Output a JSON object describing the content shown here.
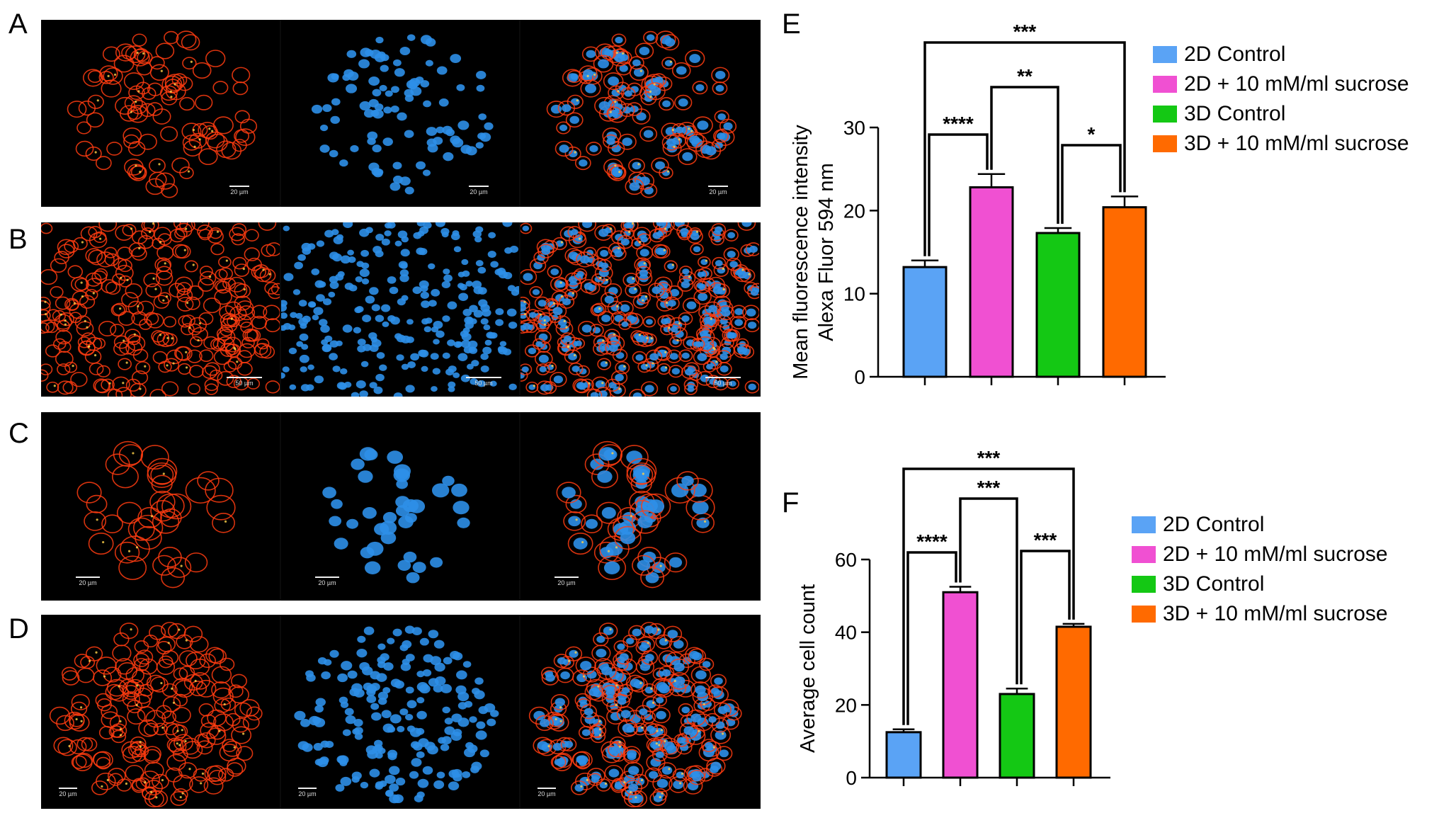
{
  "panels": {
    "letters": [
      "A",
      "B",
      "C",
      "D",
      "E",
      "F"
    ],
    "scale_labels": {
      "A": "20 µm",
      "B": "50 µm",
      "C": "20 µm",
      "D": "20 µm"
    }
  },
  "legend": [
    "2D Control",
    "2D + 10 mM/ml sucrose",
    "3D Control",
    "3D + 10 mM/ml sucrose"
  ],
  "colors": {
    "2d_control": "#5aa3f5",
    "2d_sucrose": "#f050d2",
    "3d_control": "#14c814",
    "3d_sucrose": "#ff6a00",
    "membrane": "#ff3c10",
    "nuclei": "#2e8fe8"
  },
  "chart_data": [
    {
      "type": "bar",
      "panel": "E",
      "categories": [
        "2D Control",
        "2D + 10 mM/ml sucrose",
        "3D Control",
        "3D + 10 mM/ml sucrose"
      ],
      "values": [
        13.2,
        22.8,
        17.3,
        20.4
      ],
      "errors": [
        0.8,
        1.6,
        0.6,
        1.3
      ],
      "ylabel_line1": "Mean fluorescence intensity",
      "ylabel_line2": "Alexa Fluor 594 nm",
      "ylim": [
        0,
        30
      ],
      "yticks": [
        "0",
        "10",
        "20",
        "30"
      ],
      "significance": [
        {
          "from": 0,
          "to": 3,
          "label": "***"
        },
        {
          "from": 1,
          "to": 2,
          "label": "**"
        },
        {
          "from": 0,
          "to": 1,
          "label": "****"
        },
        {
          "from": 2,
          "to": 3,
          "label": "*"
        }
      ]
    },
    {
      "type": "bar",
      "panel": "F",
      "categories": [
        "2D Control",
        "2D + 10 mM/ml sucrose",
        "3D Control",
        "3D + 10 mM/ml sucrose"
      ],
      "values": [
        12.5,
        51,
        23,
        41.5
      ],
      "errors": [
        0.8,
        1.5,
        1.5,
        0.8
      ],
      "ylabel_line1": "Average cell count",
      "ylim": [
        0,
        60
      ],
      "yticks": [
        "0",
        "20",
        "40",
        "60"
      ],
      "significance": [
        {
          "from": 0,
          "to": 3,
          "label": "***"
        },
        {
          "from": 1,
          "to": 2,
          "label": "***"
        },
        {
          "from": 0,
          "to": 1,
          "label": "****"
        },
        {
          "from": 2,
          "to": 3,
          "label": "***"
        }
      ]
    }
  ]
}
